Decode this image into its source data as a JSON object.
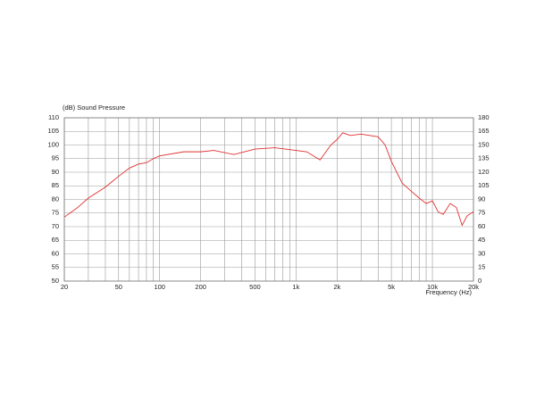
{
  "chart_data": {
    "type": "line",
    "title": "(dB)  Sound Pressure",
    "x_label": "Frequency  (Hz)",
    "xscale": "log",
    "xlim": [
      20,
      20000
    ],
    "xticks": [
      20,
      50,
      100,
      200,
      500,
      {
        "value": 1000,
        "label": "1k"
      },
      {
        "value": 2000,
        "label": "2k"
      },
      {
        "value": 5000,
        "label": "5k"
      },
      {
        "value": 10000,
        "label": "10k"
      },
      {
        "value": 20000,
        "label": "20k"
      }
    ],
    "xminor": [
      30,
      40,
      60,
      70,
      80,
      90,
      300,
      400,
      600,
      700,
      800,
      900,
      3000,
      4000,
      6000,
      7000,
      8000,
      9000
    ],
    "ylim": [
      50,
      110
    ],
    "yticks": [
      50,
      55,
      60,
      65,
      70,
      75,
      80,
      85,
      90,
      95,
      100,
      105,
      110
    ],
    "y2lim": [
      0,
      180
    ],
    "y2ticks": [
      0,
      15,
      30,
      45,
      60,
      75,
      90,
      105,
      120,
      135,
      150,
      165,
      180
    ],
    "grid": true,
    "x": [
      20,
      25,
      30,
      40,
      50,
      60,
      70,
      80,
      90,
      100,
      150,
      200,
      250,
      350,
      500,
      700,
      1000,
      1200,
      1500,
      1800,
      2000,
      2200,
      2500,
      3000,
      4000,
      4500,
      5000,
      6000,
      7000,
      8000,
      9000,
      10000,
      11000,
      12000,
      13500,
      15000,
      16500,
      18000,
      20000
    ],
    "series": [
      {
        "color": "#e03030",
        "values": [
          73.5,
          77,
          80.5,
          84.5,
          88.5,
          91.5,
          93,
          93.5,
          95,
          96,
          97.5,
          97.5,
          98,
          96.5,
          98.5,
          99,
          98,
          97.5,
          94.5,
          100,
          102,
          104.5,
          103.5,
          104,
          103,
          100,
          94,
          86,
          83,
          80.5,
          78.5,
          79.5,
          75.5,
          74.5,
          78.5,
          77,
          70.5,
          74,
          75.5
        ]
      }
    ]
  }
}
